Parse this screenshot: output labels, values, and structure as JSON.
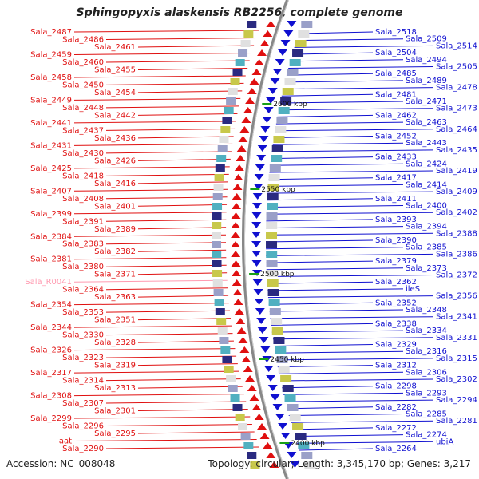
{
  "title": "Sphingopyxis alaskensis RB2256, complete genome",
  "accession": "Accession: NC_008048",
  "summary": "Topology: circular; Length: 3,345,170 bp; Genes: 3,217",
  "colors": {
    "reverse": "#e01010",
    "forward": "#1010d0",
    "rna": "#ff9ab0",
    "backbone": "#888888",
    "ticks": "#18a018"
  },
  "kbp_marks": [
    "2600 kbp",
    "2550 kbp",
    "2500 kbp",
    "2450 kbp",
    "2400 kbp"
  ],
  "left_labels": [
    "Sala_2487",
    "Sala_2486",
    "Sala_2461",
    "Sala_2459",
    "Sala_2460",
    "Sala_2455",
    "Sala_2458",
    "Sala_2450",
    "Sala_2454",
    "Sala_2449",
    "Sala_2448",
    "Sala_2442",
    "Sala_2441",
    "Sala_2437",
    "Sala_2436",
    "Sala_2431",
    "Sala_2430",
    "Sala_2426",
    "Sala_2425",
    "Sala_2418",
    "Sala_2416",
    "Sala_2407",
    "Sala_2408",
    "Sala_2401",
    "Sala_2399",
    "Sala_2391",
    "Sala_2389",
    "Sala_2384",
    "Sala_2383",
    "Sala_2382",
    "Sala_2381",
    "Sala_2380",
    "Sala_2371",
    "Sala_R0041",
    "Sala_2364",
    "Sala_2363",
    "Sala_2354",
    "Sala_2353",
    "Sala_2351",
    "Sala_2344",
    "Sala_2330",
    "Sala_2328",
    "Sala_2326",
    "Sala_2323",
    "Sala_2319",
    "Sala_2317",
    "Sala_2314",
    "Sala_2313",
    "Sala_2308",
    "Sala_2307",
    "Sala_2301",
    "Sala_2299",
    "Sala_2296",
    "Sala_2295",
    "aat",
    "Sala_2290"
  ],
  "right_labels": [
    "Sala_2518",
    "Sala_2509",
    "Sala_2514",
    "Sala_2504",
    "Sala_2494",
    "Sala_2505",
    "Sala_2485",
    "Sala_2489",
    "Sala_2478",
    "Sala_2481",
    "Sala_2471",
    "Sala_2473",
    "Sala_2462",
    "Sala_2463",
    "Sala_2464",
    "Sala_2452",
    "Sala_2443",
    "Sala_2435",
    "Sala_2433",
    "Sala_2424",
    "Sala_2419",
    "Sala_2417",
    "Sala_2414",
    "Sala_2409",
    "Sala_2411",
    "Sala_2400",
    "Sala_2402",
    "Sala_2393",
    "Sala_2394",
    "Sala_2388",
    "Sala_2390",
    "Sala_2385",
    "Sala_2386",
    "Sala_2379",
    "Sala_2373",
    "Sala_2372",
    "Sala_2362",
    "ileS",
    "Sala_2356",
    "Sala_2352",
    "Sala_2348",
    "Sala_2341",
    "Sala_2338",
    "Sala_2334",
    "Sala_2331",
    "Sala_2329",
    "Sala_2316",
    "Sala_2315",
    "Sala_2312",
    "Sala_2306",
    "Sala_2302",
    "Sala_2298",
    "Sala_2293",
    "Sala_2294",
    "Sala_2282",
    "Sala_2285",
    "Sala_2281",
    "Sala_2272",
    "Sala_2274",
    "ubiA",
    "Sala_2264"
  ]
}
